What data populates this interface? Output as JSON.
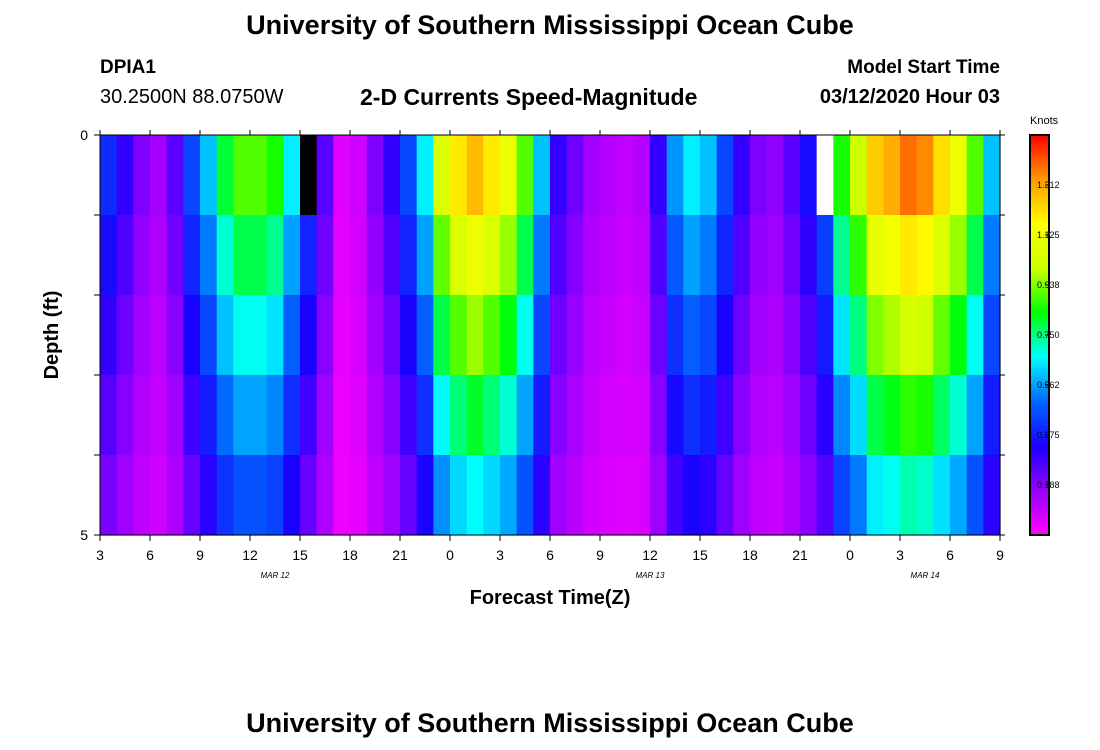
{
  "header": {
    "title_top": "University of Southern Mississippi Ocean Cube",
    "title_bottom": "University of Southern Mississippi Ocean Cube",
    "station_id": "DPIA1",
    "coordinates": "30.2500N 88.0750W",
    "subtitle": "2-D Currents Speed-Magnitude",
    "model_start_label": "Model Start Time",
    "model_start_value": "03/12/2020 Hour 03"
  },
  "colors": {
    "colormap": [
      "#ff00ff",
      "#9900ff",
      "#1a00ff",
      "#0066ff",
      "#00ffff",
      "#00ff00",
      "#ccff00",
      "#ffff00",
      "#ff9900",
      "#ff0000"
    ],
    "missing_black": "#000000",
    "missing_white": "#ffffff"
  },
  "chart_data": {
    "type": "heatmap",
    "title": "2-D Currents Speed-Magnitude",
    "xlabel": "Forecast Time(Z)",
    "ylabel": "Depth (ft)",
    "colorbar_unit": "Knots",
    "colorbar_ticks": [
      "1.312",
      "1.125",
      "0.938",
      "0.750",
      "0.562",
      "0.375",
      "0.188"
    ],
    "colorbar_values": [
      1.312,
      1.125,
      0.938,
      0.75,
      0.562,
      0.375,
      0.188
    ],
    "value_range": [
      0,
      1.5
    ],
    "x_range_hours": [
      0,
      54
    ],
    "x_tick_labels": [
      "3",
      "6",
      "9",
      "12",
      "15",
      "18",
      "21",
      "0",
      "3",
      "6",
      "9",
      "12",
      "15",
      "18",
      "21",
      "0",
      "3",
      "6",
      "9"
    ],
    "date_labels": [
      {
        "text": "MAR 12",
        "hour": 10.5
      },
      {
        "text": "MAR 13",
        "hour": 33
      },
      {
        "text": "MAR 14",
        "hour": 49.5
      }
    ],
    "y_tick_labels": [
      "0",
      "5"
    ],
    "y_range": [
      0,
      5
    ],
    "depth_rows": [
      0,
      1,
      2,
      3,
      4
    ],
    "time_hours": [
      0,
      1,
      2,
      3,
      4,
      5,
      6,
      7,
      8,
      9,
      10,
      11,
      12,
      13,
      14,
      15,
      16,
      17,
      18,
      19,
      20,
      21,
      22,
      23,
      24,
      25,
      26,
      27,
      28,
      29,
      30,
      31,
      32,
      33,
      34,
      35,
      36,
      37,
      38,
      39,
      40,
      41,
      42,
      43,
      44,
      45,
      46,
      47,
      48,
      49,
      50,
      51,
      52,
      53
    ],
    "surface_speed": [
      0.4,
      0.3,
      0.2,
      0.15,
      0.25,
      0.45,
      0.6,
      0.8,
      0.9,
      0.9,
      0.85,
      0.65,
      0.45,
      0.25,
      0.05,
      0.08,
      0.2,
      0.3,
      0.45,
      0.65,
      1.05,
      1.2,
      1.28,
      1.2,
      1.1,
      0.9,
      0.6,
      0.3,
      0.22,
      0.15,
      0.12,
      0.1,
      0.12,
      0.3,
      0.55,
      0.65,
      0.6,
      0.45,
      0.3,
      0.2,
      0.18,
      0.25,
      0.35,
      0.5,
      0.85,
      1.0,
      1.25,
      1.3,
      1.38,
      1.35,
      1.22,
      1.1,
      0.9,
      0.6
    ],
    "depth_factors": [
      1.0,
      0.87,
      0.75,
      0.63,
      0.52
    ],
    "missing_cells": [
      {
        "hour": 12,
        "row": 0,
        "color": "missing_black"
      },
      {
        "hour": 43,
        "row": 0,
        "color": "missing_white"
      }
    ]
  }
}
